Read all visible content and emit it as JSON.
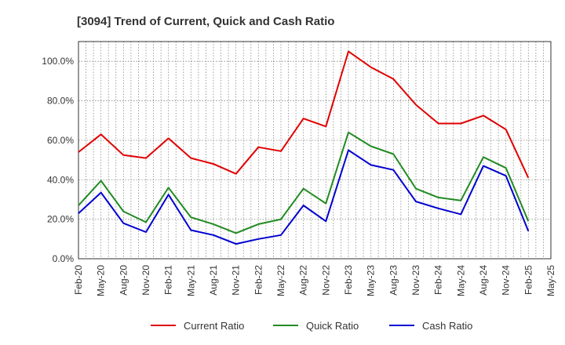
{
  "chart_data": {
    "type": "line",
    "title": "[3094]  Trend of Current, Quick and Cash Ratio",
    "xlabel": "",
    "ylabel": "",
    "ylim": [
      0,
      110
    ],
    "yticks": [
      0,
      20,
      40,
      60,
      80,
      100
    ],
    "ytick_labels": [
      "0.0%",
      "20.0%",
      "40.0%",
      "60.0%",
      "80.0%",
      "100.0%"
    ],
    "grid": true,
    "legend_position": "bottom",
    "x_tick_labels": [
      "Feb-20",
      "May-20",
      "Aug-20",
      "Nov-20",
      "Feb-21",
      "May-21",
      "Aug-21",
      "Nov-21",
      "Feb-22",
      "May-22",
      "Aug-22",
      "Nov-22",
      "Feb-23",
      "May-23",
      "Aug-23",
      "Nov-23",
      "Feb-24",
      "May-24",
      "Aug-24",
      "Nov-24",
      "Feb-25",
      "May-25"
    ],
    "series": [
      {
        "name": "Current Ratio",
        "color": "#e00000",
        "values": [
          54,
          63,
          52.5,
          51,
          61,
          51,
          48,
          43,
          56.5,
          54.5,
          71,
          67,
          105,
          97,
          91,
          78,
          68.5,
          68.5,
          72.5,
          65.5,
          41,
          null
        ]
      },
      {
        "name": "Quick Ratio",
        "color": "#228b22",
        "values": [
          27,
          39.5,
          24,
          18.5,
          36,
          21,
          17.5,
          13,
          17.5,
          20,
          35.5,
          28,
          64,
          57,
          53,
          35.5,
          31,
          29.5,
          51.5,
          46,
          19,
          null
        ]
      },
      {
        "name": "Cash Ratio",
        "color": "#0000d0",
        "values": [
          23,
          33.5,
          18,
          13.5,
          32.5,
          14.5,
          12,
          7.5,
          10,
          12,
          27,
          19,
          55,
          47.5,
          45,
          29,
          25.5,
          22.5,
          47,
          42,
          14,
          null
        ]
      }
    ]
  }
}
